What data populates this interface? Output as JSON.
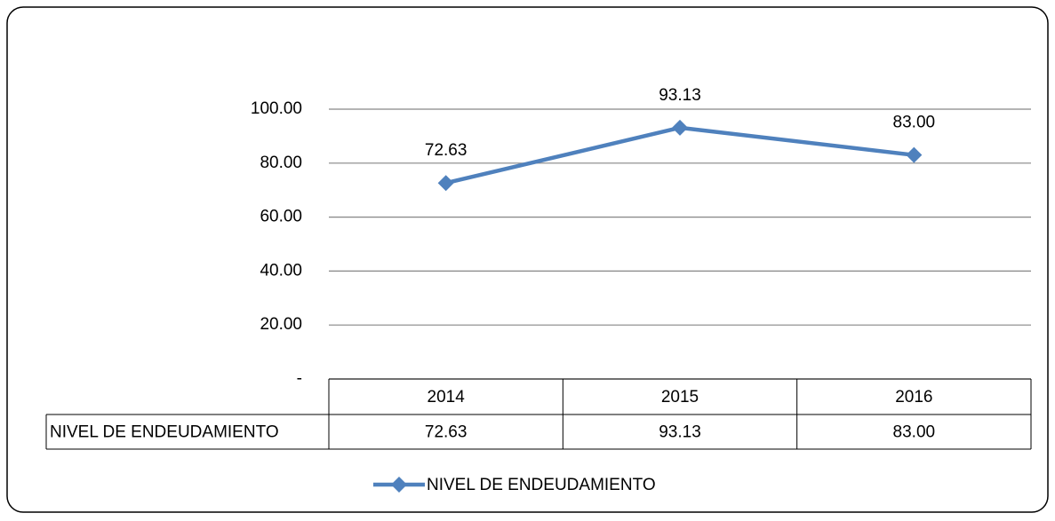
{
  "chart_data": {
    "type": "line",
    "categories": [
      "2014",
      "2015",
      "2016"
    ],
    "series": [
      {
        "name": "NIVEL DE ENDEUDAMIENTO",
        "color": "#4f81bd",
        "values": [
          72.63,
          93.13,
          83
        ],
        "value_labels": [
          "72.63",
          "93.13",
          "83.00"
        ]
      }
    ],
    "ylim": [
      0,
      100
    ],
    "yticks": [
      {
        "value": 0,
        "label": "-"
      },
      {
        "value": 20,
        "label": "20.00"
      },
      {
        "value": 40,
        "label": "40.00"
      },
      {
        "value": 60,
        "label": "60.00"
      },
      {
        "value": 80,
        "label": "80.00"
      },
      {
        "value": 100,
        "label": "100.00"
      }
    ],
    "grid": true,
    "data_table": true,
    "legend": "bottom"
  }
}
